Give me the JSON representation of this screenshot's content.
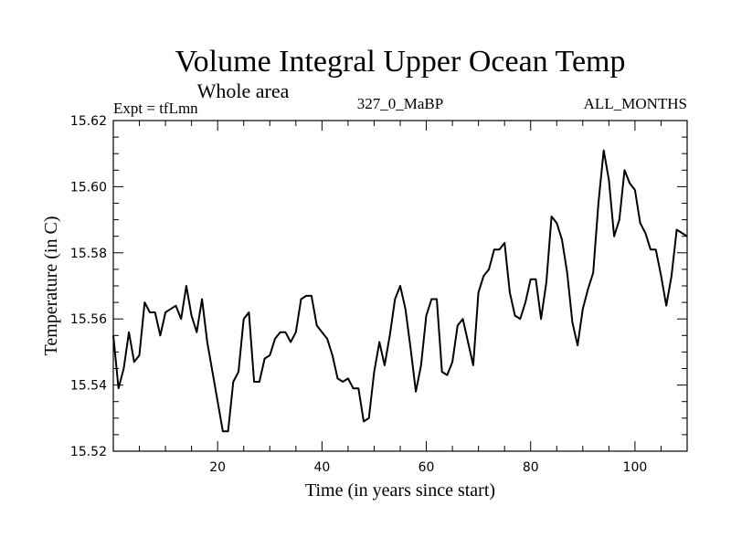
{
  "chart_data": {
    "type": "line",
    "title": "Volume Integral Upper Ocean Temp",
    "subtitle": "Whole area",
    "left_label": "Expt = tfLmn",
    "center_label": "327_0_MaBP",
    "right_label": "ALL_MONTHS",
    "xlabel": "Time (in years since start)",
    "ylabel": "Temperature (in C)",
    "xlim": [
      0,
      110
    ],
    "ylim": [
      15.52,
      15.62
    ],
    "xticks": [
      20,
      40,
      60,
      80,
      100
    ],
    "yticks": [
      "15.52",
      "15.54",
      "15.56",
      "15.58",
      "15.60",
      "15.62"
    ],
    "series": [
      {
        "name": "tfLmn",
        "x": [
          0,
          1,
          2,
          3,
          4,
          5,
          6,
          7,
          8,
          9,
          10,
          11,
          12,
          13,
          14,
          15,
          16,
          17,
          18,
          19,
          20,
          21,
          22,
          23,
          24,
          25,
          26,
          27,
          28,
          29,
          30,
          31,
          32,
          33,
          34,
          35,
          36,
          37,
          38,
          39,
          40,
          41,
          42,
          43,
          44,
          45,
          46,
          47,
          48,
          49,
          50,
          51,
          52,
          53,
          54,
          55,
          56,
          57,
          58,
          59,
          60,
          61,
          62,
          63,
          64,
          65,
          66,
          67,
          68,
          69,
          70,
          71,
          72,
          73,
          74,
          75,
          76,
          77,
          78,
          79,
          80,
          81,
          82,
          83,
          84,
          85,
          86,
          87,
          88,
          89,
          90,
          91,
          92,
          93,
          94,
          95,
          96,
          97,
          98,
          99,
          100,
          101,
          102,
          103,
          104,
          105,
          106,
          107,
          108,
          109,
          110
        ],
        "y": [
          15.555,
          15.539,
          15.545,
          15.556,
          15.547,
          15.549,
          15.565,
          15.562,
          15.562,
          15.555,
          15.562,
          15.563,
          15.564,
          15.56,
          15.57,
          15.561,
          15.556,
          15.566,
          15.553,
          15.544,
          15.535,
          15.526,
          15.526,
          15.541,
          15.544,
          15.56,
          15.562,
          15.541,
          15.541,
          15.548,
          15.549,
          15.554,
          15.556,
          15.556,
          15.553,
          15.556,
          15.566,
          15.567,
          15.567,
          15.558,
          15.556,
          15.554,
          15.549,
          15.542,
          15.541,
          15.542,
          15.539,
          15.539,
          15.529,
          15.53,
          15.544,
          15.553,
          15.546,
          15.555,
          15.566,
          15.57,
          15.563,
          15.551,
          15.538,
          15.546,
          15.561,
          15.566,
          15.566,
          15.544,
          15.543,
          15.547,
          15.558,
          15.56,
          15.553,
          15.546,
          15.568,
          15.573,
          15.575,
          15.581,
          15.581,
          15.583,
          15.568,
          15.561,
          15.56,
          15.565,
          15.572,
          15.572,
          15.56,
          15.571,
          15.591,
          15.589,
          15.584,
          15.574,
          15.559,
          15.552,
          15.563,
          15.569,
          15.574,
          15.595,
          15.611,
          15.602,
          15.585,
          15.59,
          15.605,
          15.601,
          15.599,
          15.589,
          15.586,
          15.581,
          15.581,
          15.573,
          15.564,
          15.573,
          15.587,
          15.586,
          15.585
        ]
      }
    ],
    "colors": {
      "line": "#000000",
      "frame": "#000000",
      "background": "#ffffff"
    }
  }
}
